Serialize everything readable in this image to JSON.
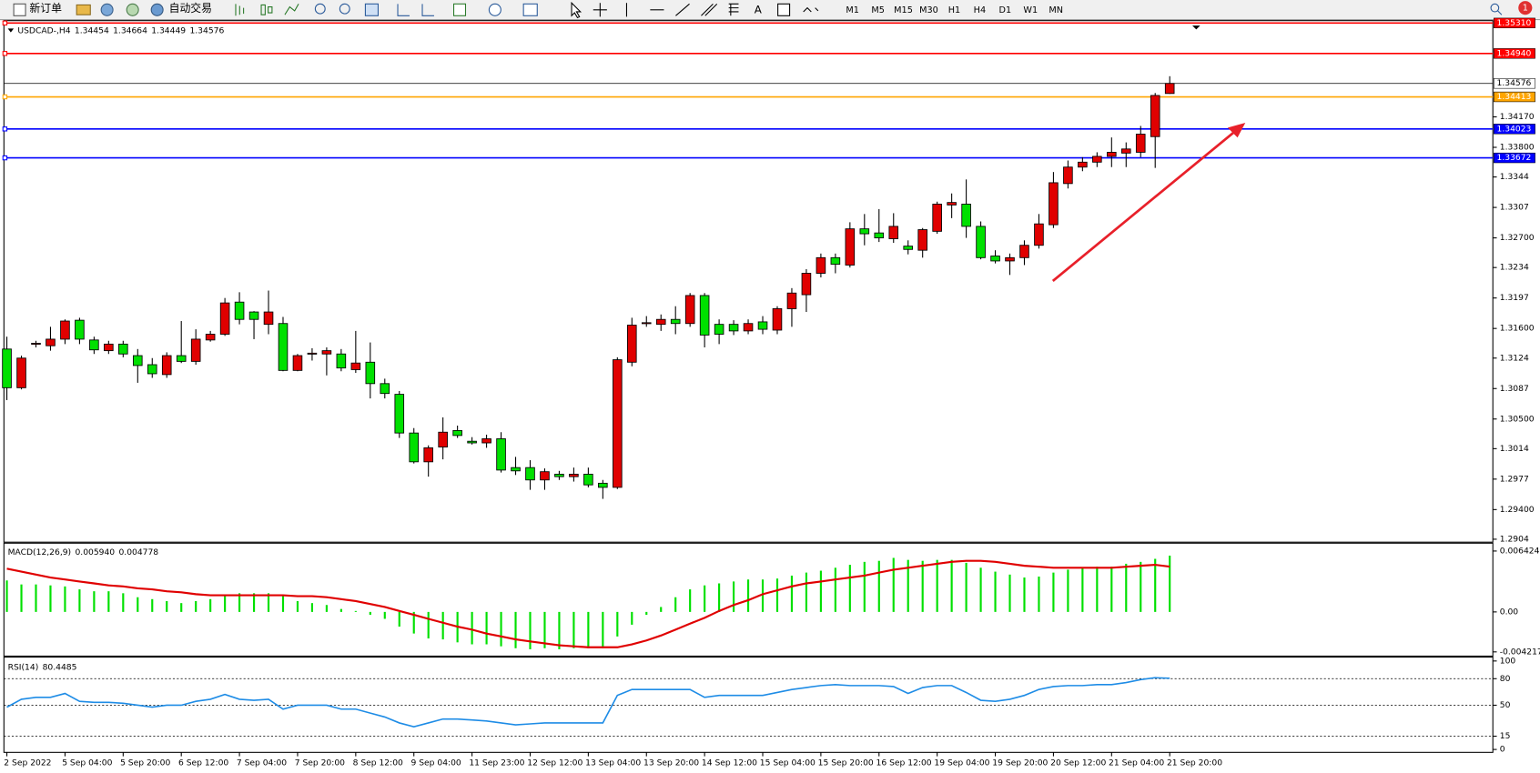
{
  "toolbar": {
    "new_order": "新订单",
    "auto_trading": "自动交易",
    "text_tool": "A",
    "notifications": "1",
    "timeframes": [
      "M1",
      "M5",
      "M15",
      "M30",
      "H1",
      "H4",
      "D1",
      "W1",
      "MN"
    ]
  },
  "chart_data": [
    {
      "type": "candlestick",
      "symbol": "USDCAD-,H4",
      "up_color": "#e00000",
      "down_color": "#00e000",
      "ylim": [
        1.29004,
        1.35339
      ],
      "yticks": [
        {
          "value": 1.3417,
          "label": "1.34170"
        },
        {
          "value": 1.338,
          "label": "1.33800"
        },
        1.3344,
        1.3307,
        {
          "value": 1.327,
          "label": "1.32700"
        },
        1.3234,
        1.3197,
        {
          "value": 1.316,
          "label": "1.31600"
        },
        1.3124,
        1.3087,
        {
          "value": 1.305,
          "label": "1.30500"
        },
        1.3014,
        1.2977,
        {
          "value": 1.294,
          "label": "1.29400"
        },
        1.2904
      ],
      "levels": [
        {
          "value": 1.3531,
          "label": "1.35310",
          "color": "#ff0000"
        },
        {
          "value": 1.3494,
          "label": "1.34940",
          "color": "#ff0000"
        },
        {
          "value": 1.34413,
          "color": "#ffa500"
        },
        {
          "value": 1.34023,
          "color": "#0000ff"
        },
        {
          "value": 1.33672,
          "color": "#0000ff"
        }
      ],
      "categories": [
        "2 Sep 2022",
        null,
        null,
        null,
        "5 Sep 04:00",
        null,
        null,
        null,
        "5 Sep 20:00",
        null,
        null,
        null,
        "6 Sep 12:00",
        null,
        null,
        null,
        "7 Sep 04:00",
        null,
        null,
        null,
        "7 Sep 20:00",
        null,
        null,
        null,
        "8 Sep 12:00",
        null,
        null,
        null,
        "9 Sep 04:00",
        null,
        null,
        null,
        "11 Sep 23:00",
        null,
        null,
        null,
        "12 Sep 12:00",
        null,
        null,
        null,
        "13 Sep 04:00",
        null,
        null,
        null,
        "13 Sep 20:00",
        null,
        null,
        null,
        "14 Sep 12:00",
        null,
        null,
        null,
        "15 Sep 04:00",
        null,
        null,
        null,
        "15 Sep 20:00",
        null,
        null,
        null,
        "16 Sep 12:00",
        null,
        null,
        null,
        "19 Sep 04:00",
        null,
        null,
        null,
        "19 Sep 20:00",
        null,
        null,
        null,
        "20 Sep 12:00",
        null,
        null,
        null,
        "21 Sep 04:00",
        null,
        null,
        null,
        "21 Sep 20:00"
      ],
      "candles": [
        [
          1.3135,
          1.315,
          1.3073,
          1.3088
        ],
        [
          1.3088,
          1.3127,
          1.3086,
          1.3124
        ],
        [
          1.3141,
          1.3145,
          1.3137,
          1.3142
        ],
        [
          1.3139,
          1.3162,
          1.3133,
          1.3147
        ],
        [
          1.3147,
          1.3171,
          1.3141,
          1.3169
        ],
        [
          1.317,
          1.3173,
          1.3141,
          1.3147
        ],
        [
          1.3146,
          1.315,
          1.3129,
          1.3134
        ],
        [
          1.3133,
          1.3145,
          1.3129,
          1.3141
        ],
        [
          1.3141,
          1.3145,
          1.3125,
          1.3129
        ],
        [
          1.3127,
          1.3135,
          1.3094,
          1.3115
        ],
        [
          1.3116,
          1.3124,
          1.31,
          1.3105
        ],
        [
          1.3104,
          1.3131,
          1.31,
          1.3127
        ],
        [
          1.3127,
          1.3169,
          1.3118,
          1.312
        ],
        [
          1.312,
          1.3159,
          1.3116,
          1.3147
        ],
        [
          1.3146,
          1.3157,
          1.3144,
          1.3153
        ],
        [
          1.3153,
          1.3197,
          1.3151,
          1.3191
        ],
        [
          1.3192,
          1.3204,
          1.3165,
          1.3171
        ],
        [
          1.318,
          1.3181,
          1.3147,
          1.3171
        ],
        [
          1.3165,
          1.3206,
          1.3153,
          1.318
        ],
        [
          1.3166,
          1.3174,
          1.3108,
          1.3109
        ],
        [
          1.3109,
          1.3129,
          1.3108,
          1.3127
        ],
        [
          1.3129,
          1.3136,
          1.3121,
          1.313
        ],
        [
          1.3129,
          1.3137,
          1.3103,
          1.3133
        ],
        [
          1.3129,
          1.3135,
          1.3108,
          1.3112
        ],
        [
          1.311,
          1.3157,
          1.3106,
          1.3118
        ],
        [
          1.3119,
          1.3143,
          1.3075,
          1.3093
        ],
        [
          1.3093,
          1.3099,
          1.3075,
          1.3081
        ],
        [
          1.308,
          1.3084,
          1.3027,
          1.3033
        ],
        [
          1.3033,
          1.3039,
          1.2996,
          1.2998
        ],
        [
          1.2998,
          1.3018,
          1.298,
          1.3015
        ],
        [
          1.3016,
          1.3052,
          1.3001,
          1.3034
        ],
        [
          1.3036,
          1.3042,
          1.3027,
          1.303
        ],
        [
          1.3023,
          1.3028,
          1.3019,
          1.3021
        ],
        [
          1.3021,
          1.3031,
          1.3015,
          1.3026
        ],
        [
          1.3026,
          1.3034,
          1.2985,
          1.2988
        ],
        [
          1.2991,
          1.3004,
          1.2982,
          1.2987
        ],
        [
          1.2991,
          1.3,
          1.2964,
          1.2976
        ],
        [
          1.2976,
          1.299,
          1.2964,
          1.2986
        ],
        [
          1.2983,
          1.2987,
          1.2976,
          1.298
        ],
        [
          1.298,
          1.2991,
          1.2974,
          1.2983
        ],
        [
          1.2983,
          1.2991,
          1.2967,
          1.297
        ],
        [
          1.2972,
          1.2976,
          1.2953,
          1.2967
        ],
        [
          1.2967,
          1.3125,
          1.2965,
          1.3122
        ],
        [
          1.3119,
          1.3173,
          1.3114,
          1.3164
        ],
        [
          1.3166,
          1.3175,
          1.3162,
          1.3167
        ],
        [
          1.3165,
          1.3177,
          1.3157,
          1.3171
        ],
        [
          1.3171,
          1.3187,
          1.3153,
          1.3166
        ],
        [
          1.3166,
          1.3203,
          1.3162,
          1.32
        ],
        [
          1.32,
          1.3203,
          1.3137,
          1.3152
        ],
        [
          1.3165,
          1.3171,
          1.3141,
          1.3153
        ],
        [
          1.3165,
          1.317,
          1.3152,
          1.3157
        ],
        [
          1.3157,
          1.3171,
          1.3153,
          1.3166
        ],
        [
          1.3168,
          1.3175,
          1.3153,
          1.3159
        ],
        [
          1.3158,
          1.3187,
          1.3153,
          1.3184
        ],
        [
          1.3184,
          1.3209,
          1.3162,
          1.3203
        ],
        [
          1.3201,
          1.3232,
          1.318,
          1.3227
        ],
        [
          1.3227,
          1.3251,
          1.3222,
          1.3246
        ],
        [
          1.3246,
          1.3251,
          1.3227,
          1.3238
        ],
        [
          1.3237,
          1.3289,
          1.3234,
          1.3281
        ],
        [
          1.3281,
          1.3299,
          1.3261,
          1.3275
        ],
        [
          1.3276,
          1.3305,
          1.3265,
          1.327
        ],
        [
          1.3269,
          1.33,
          1.3264,
          1.3284
        ],
        [
          1.326,
          1.3267,
          1.325,
          1.3256
        ],
        [
          1.3255,
          1.3282,
          1.3246,
          1.328
        ],
        [
          1.3278,
          1.3314,
          1.3275,
          1.3311
        ],
        [
          1.331,
          1.3324,
          1.3294,
          1.3313
        ],
        [
          1.3311,
          1.3341,
          1.327,
          1.3284
        ],
        [
          1.3284,
          1.329,
          1.3244,
          1.3246
        ],
        [
          1.3248,
          1.3255,
          1.3239,
          1.3242
        ],
        [
          1.3242,
          1.3251,
          1.3225,
          1.3246
        ],
        [
          1.3246,
          1.3267,
          1.3237,
          1.3261
        ],
        [
          1.3261,
          1.3299,
          1.3257,
          1.3287
        ],
        [
          1.3286,
          1.335,
          1.3282,
          1.3337
        ],
        [
          1.3336,
          1.3364,
          1.333,
          1.3356
        ],
        [
          1.3356,
          1.3368,
          1.3351,
          1.3362
        ],
        [
          1.3362,
          1.3374,
          1.3356,
          1.3369
        ],
        [
          1.3369,
          1.3392,
          1.3356,
          1.3374
        ],
        [
          1.3373,
          1.3386,
          1.3356,
          1.3378
        ],
        [
          1.3374,
          1.3406,
          1.3368,
          1.3396
        ],
        [
          1.3393,
          1.3446,
          1.3355,
          1.3443
        ],
        [
          1.34454,
          1.34664,
          1.34449,
          1.34576
        ]
      ]
    },
    {
      "type": "macd",
      "title": "MACD(12,26,9)",
      "ylim": [
        -0.004663,
        0.007254
      ],
      "yticks": [
        0.006424,
        {
          "value": 0,
          "label": "0.00"
        },
        -0.004217
      ],
      "histogram": {
        "color": "#00e000",
        "last_label": "0.005940",
        "values": [
          0.00332,
          0.0029,
          0.0029,
          0.0028,
          0.00269,
          0.00238,
          0.00218,
          0.00218,
          0.00197,
          0.00155,
          0.00135,
          0.00114,
          0.00093,
          0.00114,
          0.00135,
          0.00176,
          0.00197,
          0.00197,
          0.00197,
          0.00176,
          0.00114,
          0.00093,
          0.00073,
          0.00031,
          0.0001,
          -0.00031,
          -0.00073,
          -0.00155,
          -0.00228,
          -0.0028,
          -0.0029,
          -0.00321,
          -0.00342,
          -0.00342,
          -0.00363,
          -0.00383,
          -0.00394,
          -0.00383,
          -0.00394,
          -0.00383,
          -0.00383,
          -0.00383,
          -0.00259,
          -0.00135,
          -0.00031,
          0.00052,
          0.00155,
          0.00238,
          0.0028,
          0.00301,
          0.00321,
          0.00342,
          0.00342,
          0.00352,
          0.00383,
          0.00415,
          0.00435,
          0.00466,
          0.00497,
          0.00528,
          0.00539,
          0.0057,
          0.00549,
          0.00539,
          0.00549,
          0.00549,
          0.00518,
          0.00466,
          0.00425,
          0.00394,
          0.00363,
          0.00373,
          0.00415,
          0.00446,
          0.00466,
          0.00477,
          0.00477,
          0.00508,
          0.00528,
          0.0056,
          0.00594
        ]
      },
      "signal": {
        "color": "#e00000",
        "values": [
          0.00456,
          0.00425,
          0.00394,
          0.00363,
          0.00342,
          0.00321,
          0.00301,
          0.0028,
          0.00269,
          0.00249,
          0.00238,
          0.00218,
          0.00207,
          0.00187,
          0.00176,
          0.00176,
          0.00176,
          0.00176,
          0.00176,
          0.00176,
          0.00166,
          0.00166,
          0.00155,
          0.00135,
          0.00114,
          0.00083,
          0.00052,
          0.0001,
          -0.00031,
          -0.00073,
          -0.00114,
          -0.00155,
          -0.00187,
          -0.00228,
          -0.00259,
          -0.0029,
          -0.00311,
          -0.00332,
          -0.00352,
          -0.00363,
          -0.00373,
          -0.00373,
          -0.00373,
          -0.00342,
          -0.00301,
          -0.00249,
          -0.00187,
          -0.00124,
          -0.00062,
          0.0001,
          0.00073,
          0.00124,
          0.00187,
          0.00228,
          0.00269,
          0.00301,
          0.00321,
          0.00342,
          0.00363,
          0.00383,
          0.00415,
          0.00446,
          0.00466,
          0.00487,
          0.00508,
          0.00528,
          0.00539,
          0.00539,
          0.00528,
          0.00508,
          0.00487,
          0.00477,
          0.00466,
          0.00466,
          0.00466,
          0.00466,
          0.00466,
          0.00477,
          0.00487,
          0.00497,
          0.004778
        ]
      }
    },
    {
      "type": "rsi",
      "title": "RSI(14)",
      "color": "#1e8ce6",
      "ylim": [
        -3.3,
        104.4
      ],
      "yticks": [
        100,
        80,
        50,
        15,
        0
      ],
      "levels": [
        80,
        50,
        15
      ],
      "values": [
        47.8,
        56.7,
        58.9,
        58.9,
        63.3,
        54.4,
        53.3,
        53.3,
        52.2,
        50.0,
        47.8,
        50.0,
        50.0,
        54.4,
        56.7,
        62.2,
        56.7,
        55.6,
        56.7,
        45.6,
        50.0,
        50.0,
        50.0,
        45.6,
        45.6,
        41.1,
        36.7,
        30.0,
        25.6,
        30.0,
        34.4,
        34.4,
        33.3,
        32.2,
        30.0,
        27.8,
        28.9,
        30.0,
        30.0,
        30.0,
        30.0,
        30.0,
        61.1,
        67.8,
        67.8,
        67.8,
        67.8,
        67.8,
        58.9,
        61.1,
        61.1,
        61.1,
        61.1,
        64.4,
        67.8,
        70.0,
        72.2,
        73.3,
        72.2,
        72.2,
        72.2,
        71.1,
        63.3,
        70.0,
        72.2,
        72.2,
        64.4,
        55.6,
        54.4,
        56.7,
        61.1,
        67.8,
        71.1,
        72.2,
        72.2,
        73.3,
        73.3,
        75.6,
        78.9,
        81.1,
        80.4485
      ]
    }
  ]
}
